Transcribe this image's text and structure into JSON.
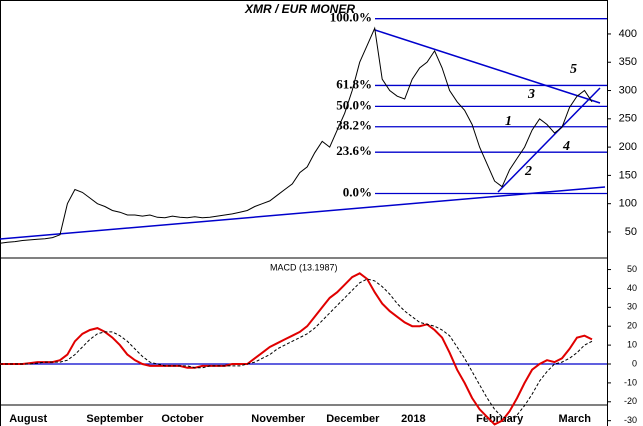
{
  "chart_data": [
    {
      "type": "line",
      "title": "XMR / EUR MONER",
      "x": [
        0,
        1,
        2,
        3,
        4,
        5,
        6,
        7,
        8,
        9,
        10,
        11,
        12,
        13,
        14,
        15,
        16,
        17,
        18,
        19,
        20,
        21,
        22,
        23,
        24,
        25,
        26,
        27,
        28,
        29,
        30,
        31,
        32,
        33,
        34,
        35,
        36,
        37,
        38,
        39,
        40,
        41,
        42,
        43,
        44,
        45,
        46,
        47,
        48,
        49,
        50,
        51,
        52,
        53,
        54,
        55,
        56,
        57,
        58,
        59,
        60,
        61,
        62,
        63,
        64,
        65,
        66,
        67,
        68,
        69,
        70,
        71,
        72,
        73,
        74,
        75,
        76,
        77,
        78,
        79
      ],
      "series": [
        {
          "color": "#000000",
          "values": [
            30,
            32,
            33,
            35,
            36,
            37,
            38,
            40,
            45,
            100,
            125,
            120,
            110,
            100,
            95,
            88,
            85,
            80,
            80,
            78,
            80,
            76,
            75,
            78,
            76,
            75,
            77,
            75,
            76,
            78,
            80,
            82,
            85,
            88,
            95,
            100,
            105,
            115,
            125,
            135,
            155,
            165,
            190,
            210,
            200,
            230,
            260,
            300,
            350,
            380,
            410,
            320,
            300,
            290,
            285,
            320,
            340,
            350,
            370,
            340,
            300,
            280,
            265,
            240,
            200,
            170,
            140,
            130,
            160,
            180,
            200,
            230,
            250,
            240,
            225,
            235,
            270,
            290,
            300,
            280
          ]
        }
      ],
      "levels": [
        {
          "label": "100.0%",
          "value": 427
        },
        {
          "label": "61.8%",
          "value": 309
        },
        {
          "label": "50.0%",
          "value": 272
        },
        {
          "label": "38.2%",
          "value": 236
        },
        {
          "label": "23.6%",
          "value": 191
        },
        {
          "label": "0.0%",
          "value": 118
        }
      ],
      "annotations": [
        "1",
        "2",
        "3",
        "4",
        "5"
      ],
      "level_color": "#0000cc",
      "xlim": [
        0,
        81
      ],
      "ylim": [
        4,
        460
      ],
      "yticks": [
        50,
        100,
        150,
        200,
        250,
        300,
        350,
        400
      ]
    },
    {
      "type": "line",
      "title": "MACD (13.1987)",
      "x": [
        0,
        1,
        2,
        3,
        4,
        5,
        6,
        7,
        8,
        9,
        10,
        11,
        12,
        13,
        14,
        15,
        16,
        17,
        18,
        19,
        20,
        21,
        22,
        23,
        24,
        25,
        26,
        27,
        28,
        29,
        30,
        31,
        32,
        33,
        34,
        35,
        36,
        37,
        38,
        39,
        40,
        41,
        42,
        43,
        44,
        45,
        46,
        47,
        48,
        49,
        50,
        51,
        52,
        53,
        54,
        55,
        56,
        57,
        58,
        59,
        60,
        61,
        62,
        63,
        64,
        65,
        66,
        67,
        68,
        69,
        70,
        71,
        72,
        73,
        74,
        75,
        76,
        77,
        78,
        79
      ],
      "series": [
        {
          "color": "#e00000",
          "values": [
            0,
            0,
            0,
            0,
            0.5,
            1,
            1,
            1,
            2,
            5,
            12,
            16,
            18,
            19,
            17,
            14,
            10,
            5,
            2,
            0,
            -1,
            -1,
            -1,
            -1,
            -1,
            -2,
            -2,
            -1,
            -1,
            -1,
            -1,
            0,
            0,
            0,
            3,
            6,
            9,
            11,
            13,
            15,
            17,
            20,
            25,
            30,
            35,
            38,
            42,
            46,
            48,
            45,
            38,
            32,
            28,
            25,
            22,
            20,
            20,
            21,
            18,
            14,
            6,
            -3,
            -10,
            -18,
            -24,
            -28,
            -32,
            -30,
            -25,
            -18,
            -10,
            -3,
            0,
            2,
            1,
            3,
            8,
            14,
            15,
            13
          ]
        },
        {
          "color": "#000000",
          "values": [
            0,
            0,
            0,
            0,
            0,
            0.5,
            1,
            1,
            1,
            2,
            5,
            9,
            13,
            16,
            17,
            17,
            15,
            12,
            8,
            4,
            1,
            0,
            -1,
            -1,
            -1,
            -1,
            -2,
            -2,
            -1,
            -1,
            -1,
            -1,
            -1,
            0,
            1,
            3,
            5,
            8,
            10,
            12,
            14,
            16,
            19,
            23,
            27,
            31,
            35,
            39,
            43,
            45,
            44,
            41,
            37,
            32,
            28,
            25,
            22,
            21,
            20,
            18,
            15,
            9,
            3,
            -4,
            -11,
            -18,
            -24,
            -28,
            -29,
            -27,
            -22,
            -16,
            -9,
            -4,
            0,
            1,
            3,
            6,
            10,
            12
          ]
        }
      ],
      "zero_color": "#0000cc",
      "xlim": [
        0,
        81
      ],
      "ylim": [
        -36,
        54
      ],
      "yticks": [
        -30,
        -20,
        -10,
        0,
        10,
        20,
        30,
        40,
        50
      ],
      "xticks": [
        {
          "value": 0.7,
          "label": "August"
        },
        {
          "value": 11,
          "label": "September"
        },
        {
          "value": 21,
          "label": "October"
        },
        {
          "value": 33,
          "label": "November"
        },
        {
          "value": 43,
          "label": "December"
        },
        {
          "value": 53,
          "label": "2018"
        },
        {
          "value": 63,
          "label": "February"
        },
        {
          "value": 74,
          "label": "March"
        }
      ]
    }
  ]
}
